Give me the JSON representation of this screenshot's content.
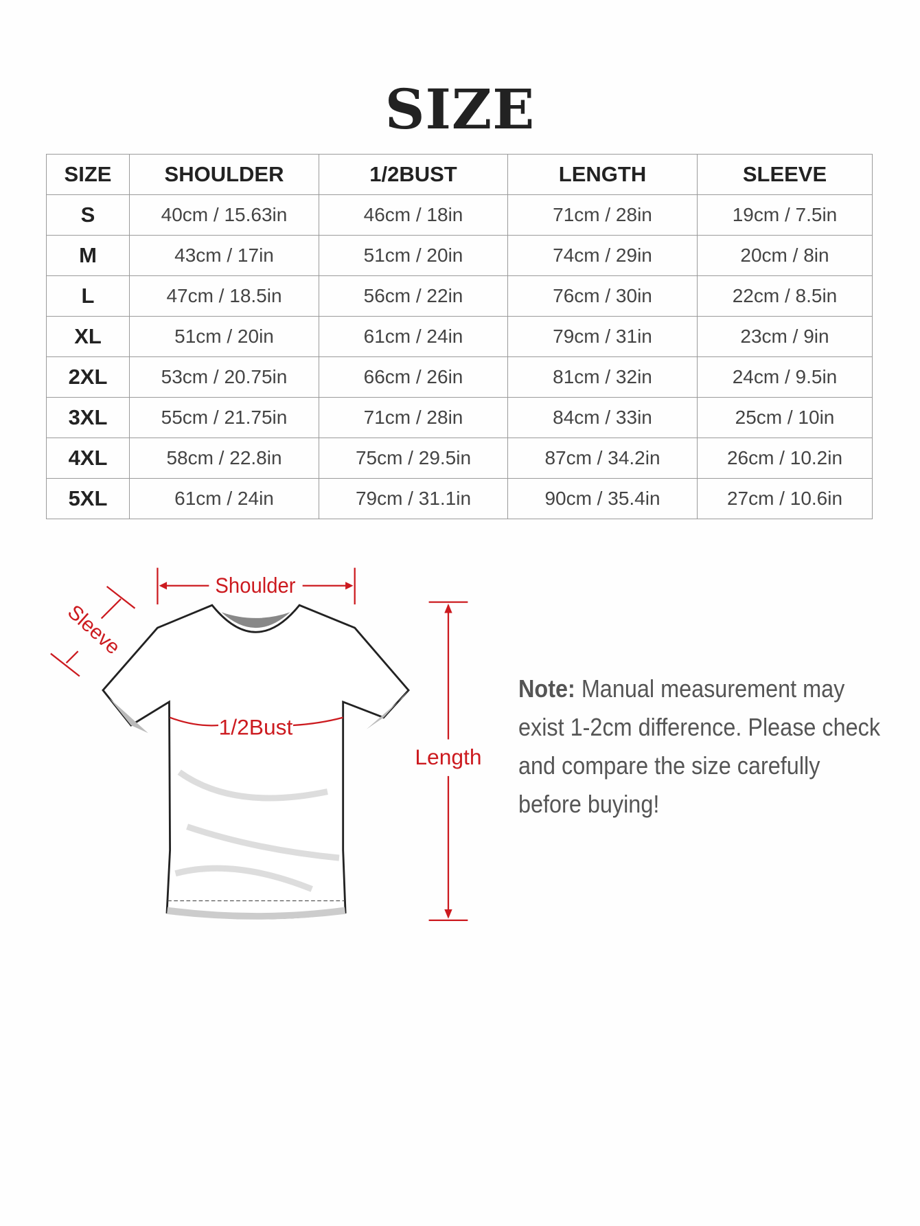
{
  "title": "SIZE",
  "table": {
    "headers": [
      "SIZE",
      "SHOULDER",
      "1/2BUST",
      "LENGTH",
      "SLEEVE"
    ],
    "rows": [
      [
        "S",
        "40cm / 15.63in",
        "46cm / 18in",
        "71cm / 28in",
        "19cm / 7.5in"
      ],
      [
        "M",
        "43cm / 17in",
        "51cm / 20in",
        "74cm / 29in",
        "20cm / 8in"
      ],
      [
        "L",
        "47cm / 18.5in",
        "56cm / 22in",
        "76cm / 30in",
        "22cm / 8.5in"
      ],
      [
        "XL",
        "51cm / 20in",
        "61cm / 24in",
        "79cm / 31in",
        "23cm / 9in"
      ],
      [
        "2XL",
        "53cm / 20.75in",
        "66cm / 26in",
        "81cm / 32in",
        "24cm / 9.5in"
      ],
      [
        "3XL",
        "55cm / 21.75in",
        "71cm / 28in",
        "84cm / 33in",
        "25cm / 10in"
      ],
      [
        "4XL",
        "58cm / 22.8in",
        "75cm / 29.5in",
        "87cm / 34.2in",
        "26cm / 10.2in"
      ],
      [
        "5XL",
        "61cm / 24in",
        "79cm / 31.1in",
        "90cm / 35.4in",
        "27cm / 10.6in"
      ]
    ]
  },
  "diagram": {
    "shoulder": "Shoulder",
    "sleeve": "Sleeve",
    "bust": "1/2Bust",
    "length": "Length",
    "accent_color": "#cc1a1f"
  },
  "note": {
    "label": "Note:",
    "text": "Manual measurement may exist 1-2cm difference. Please check and compare the size carefully before buying!"
  }
}
